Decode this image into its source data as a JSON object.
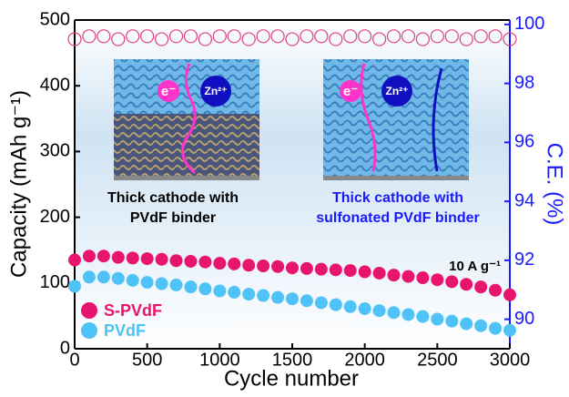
{
  "chart_data": {
    "type": "scatter",
    "x_label": "Cycle number",
    "y_label": "Capacity (mAh g⁻¹)",
    "y2_label": "C.E. (%)",
    "x": [
      0,
      100,
      200,
      300,
      400,
      500,
      600,
      700,
      800,
      900,
      1000,
      1100,
      1200,
      1300,
      1400,
      1500,
      1600,
      1700,
      1800,
      1900,
      2000,
      2100,
      2200,
      2300,
      2400,
      2500,
      2600,
      2700,
      2800,
      2900,
      3000
    ],
    "series": [
      {
        "name": "S-PVdF",
        "color": "#e8156f",
        "values": [
          135,
          141,
          141,
          139,
          138,
          137,
          136,
          134,
          133,
          132,
          130,
          129,
          127,
          126,
          125,
          123,
          122,
          121,
          120,
          119,
          117,
          115,
          112,
          110,
          108,
          105,
          102,
          98,
          94,
          89,
          82
        ]
      },
      {
        "name": "PVdF",
        "color": "#4fc3f7",
        "values": [
          95,
          109,
          109,
          107,
          104,
          101,
          99,
          97,
          94,
          91,
          88,
          86,
          83,
          81,
          78,
          76,
          73,
          70,
          67,
          64,
          61,
          58,
          55,
          52,
          49,
          45,
          42,
          38,
          35,
          31,
          28
        ]
      },
      {
        "color": "#e0407a",
        "axis": "y2",
        "marker": "open",
        "values": [
          99.5,
          99.6,
          99.6,
          99.5,
          99.6,
          99.6,
          99.5,
          99.6,
          99.6,
          99.5,
          99.6,
          99.6,
          99.5,
          99.6,
          99.6,
          99.5,
          99.6,
          99.6,
          99.5,
          99.6,
          99.6,
          99.5,
          99.6,
          99.6,
          99.5,
          99.6,
          99.6,
          99.5,
          99.6,
          99.6,
          99.5
        ]
      }
    ],
    "xlim": [
      0,
      3000
    ],
    "xticks": [
      0,
      500,
      1000,
      1500,
      2000,
      2500,
      3000
    ],
    "ylim": [
      0,
      500
    ],
    "yticks": [
      0,
      100,
      200,
      300,
      400,
      500
    ],
    "y2lim": [
      89,
      100.15
    ],
    "y2ticks": [
      90,
      92,
      94,
      96,
      98,
      100
    ],
    "y2_color": "#1a1aff",
    "legend": "lower left",
    "annotations": {
      "rate": "10 A g⁻¹",
      "left_caption": [
        "Thick cathode with",
        "PVdF binder"
      ],
      "right_caption": [
        "Thick cathode with",
        "sulfonated PVdF binder"
      ],
      "electron": "e⁻",
      "zinc": "Zn²⁺"
    }
  }
}
